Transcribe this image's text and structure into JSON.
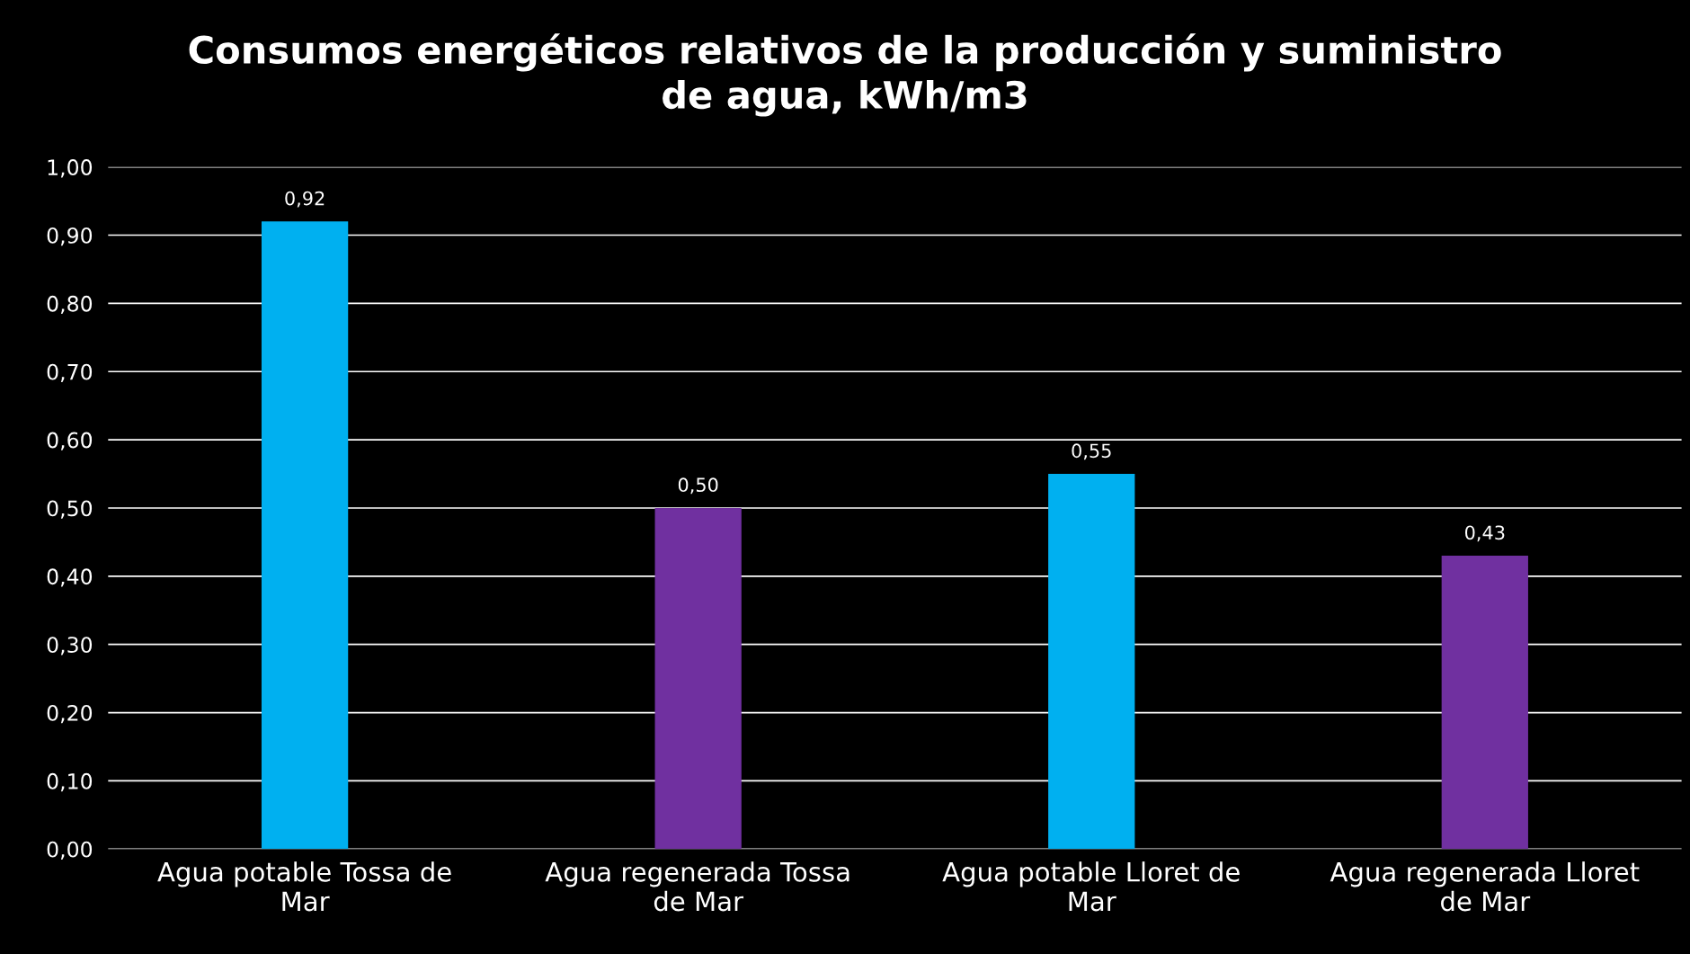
{
  "chart_data": {
    "type": "bar",
    "title": "Consumos energéticos relativos de la producción y suministro de agua, kWh/m3",
    "categories": [
      "Agua potable Tossa de Mar",
      "Agua regenerada Tossa de Mar",
      "Agua potable Lloret de Mar",
      "Agua regenerada Lloret de Mar"
    ],
    "values": [
      0.92,
      0.5,
      0.55,
      0.43
    ],
    "colors": [
      "#00b0f0",
      "#7030a0",
      "#00b0f0",
      "#7030a0"
    ],
    "value_labels": [
      "0,92",
      "0,50",
      "0,55",
      "0,43"
    ],
    "ylim": [
      0,
      1
    ],
    "yticks": [
      {
        "value": 0,
        "label": "0,00"
      },
      {
        "value": 0.1,
        "label": "0,10"
      },
      {
        "value": 0.2,
        "label": "0,20"
      },
      {
        "value": 0.3,
        "label": "0,30"
      },
      {
        "value": 0.4,
        "label": "0,40"
      },
      {
        "value": 0.5,
        "label": "0,50"
      },
      {
        "value": 0.6,
        "label": "0,60"
      },
      {
        "value": 0.7,
        "label": "0,70"
      },
      {
        "value": 0.8,
        "label": "0,80"
      },
      {
        "value": 0.9,
        "label": "0,90"
      },
      {
        "value": 1,
        "label": "1,00"
      }
    ],
    "grid": "y"
  }
}
